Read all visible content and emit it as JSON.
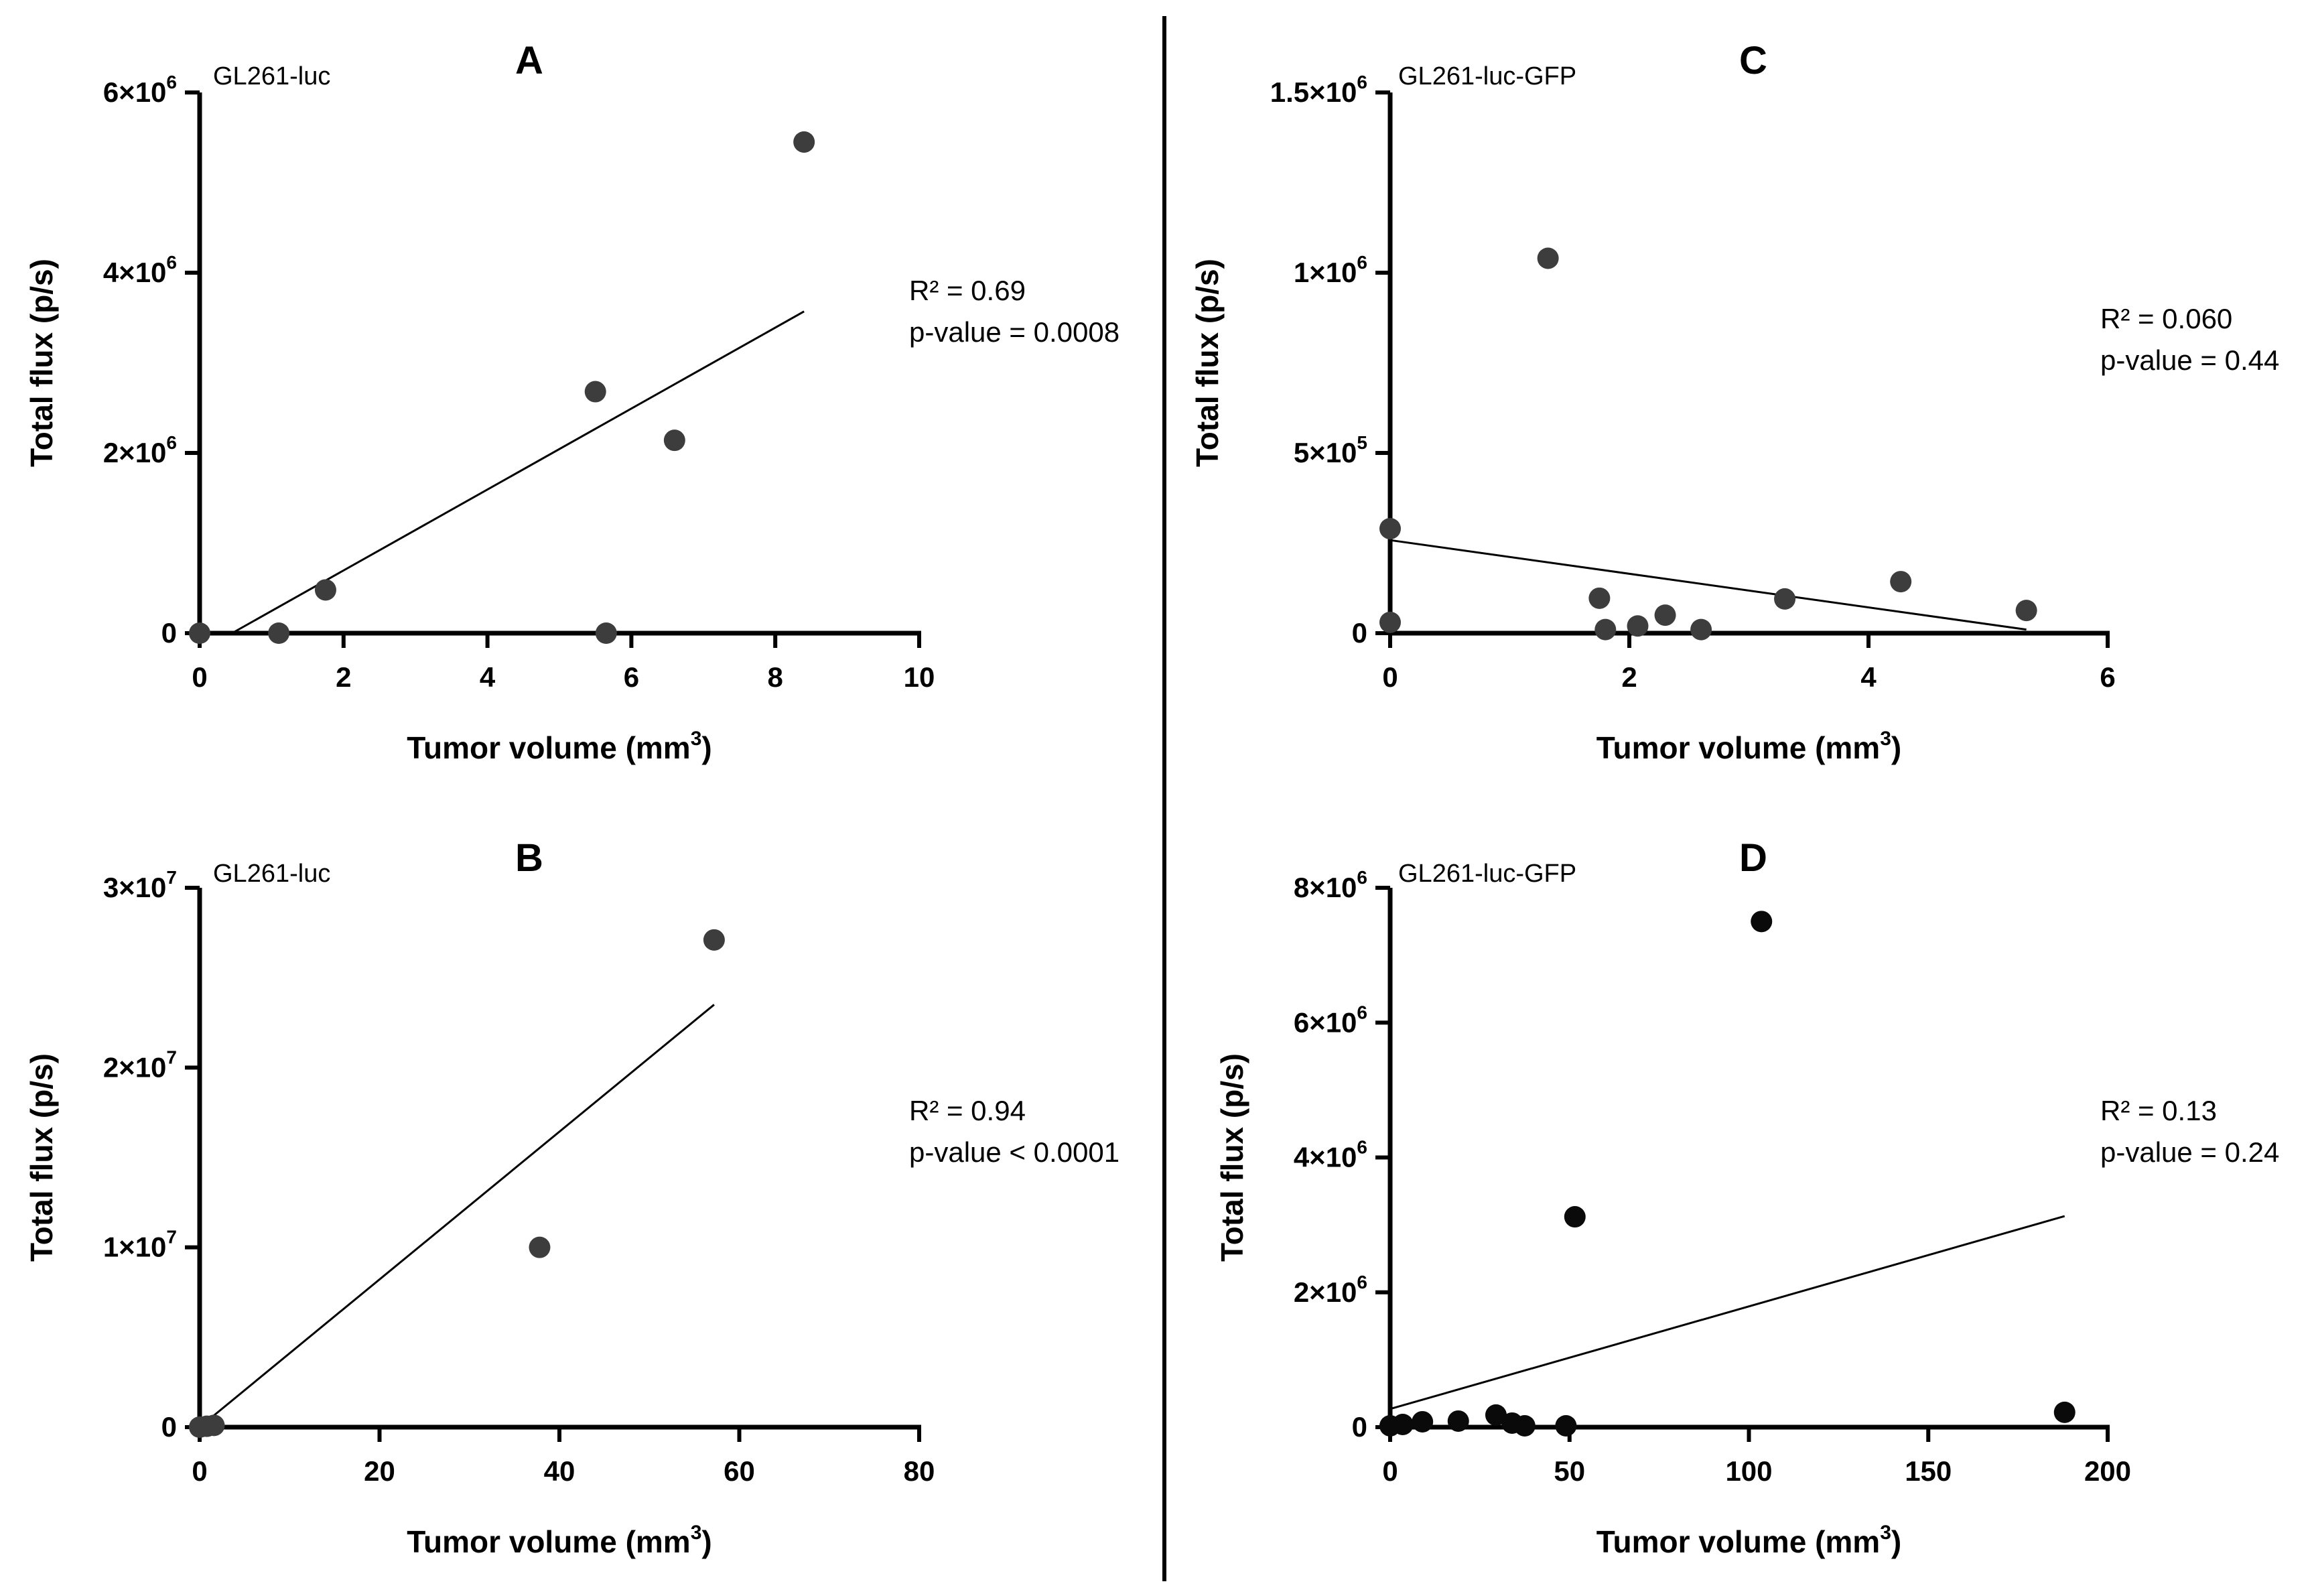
{
  "colors": {
    "marker": "#3d3d3d",
    "marker_dark": "#0a0a0a",
    "axis": "#000000",
    "line": "#000000"
  },
  "chart_data": [
    {
      "type": "scatter",
      "panel": "A",
      "cell_line": "GL261-luc",
      "xlabel": "Tumor volume (mm",
      "xlabel_sup": "3",
      "xlabel_end": ")",
      "ylabel": "Total flux (p/s)",
      "xlim": [
        0,
        10
      ],
      "ylim": [
        0,
        6000000
      ],
      "x_ticks": [
        0,
        2,
        4,
        6,
        8,
        10
      ],
      "x_tick_labels": [
        "0",
        "2",
        "4",
        "6",
        "8",
        "10"
      ],
      "y_ticks": [
        0,
        2000000,
        4000000,
        6000000
      ],
      "y_tick_labels": [
        {
          "base": "0",
          "exp": ""
        },
        {
          "base": "2×10",
          "exp": "6"
        },
        {
          "base": "4×10",
          "exp": "6"
        },
        {
          "base": "6×10",
          "exp": "6"
        }
      ],
      "points": [
        {
          "x": 0,
          "y": 0
        },
        {
          "x": 1.1,
          "y": 0
        },
        {
          "x": 1.75,
          "y": 480000
        },
        {
          "x": 5.5,
          "y": 2680000
        },
        {
          "x": 5.65,
          "y": 0
        },
        {
          "x": 6.6,
          "y": 2140000
        },
        {
          "x": 8.4,
          "y": 5450000
        }
      ],
      "fit": {
        "x1": 0.45,
        "y1": 0,
        "x2": 8.4,
        "y2": 3570000
      },
      "stats": [
        "R² = 0.69",
        "p-value = 0.0008"
      ],
      "dark_markers": false
    },
    {
      "type": "scatter",
      "panel": "B",
      "cell_line": "GL261-luc",
      "xlabel": "Tumor volume (mm",
      "xlabel_sup": "3",
      "xlabel_end": ")",
      "ylabel": "Total flux (p/s)",
      "xlim": [
        0,
        80
      ],
      "ylim": [
        0,
        30000000
      ],
      "x_ticks": [
        0,
        20,
        40,
        60,
        80
      ],
      "x_tick_labels": [
        "0",
        "20",
        "40",
        "60",
        "80"
      ],
      "y_ticks": [
        0,
        10000000,
        20000000,
        30000000
      ],
      "y_tick_labels": [
        {
          "base": "0",
          "exp": ""
        },
        {
          "base": "1×10",
          "exp": "7"
        },
        {
          "base": "2×10",
          "exp": "7"
        },
        {
          "base": "3×10",
          "exp": "7"
        }
      ],
      "points": [
        {
          "x": 0,
          "y": 0
        },
        {
          "x": 0.8,
          "y": 50000
        },
        {
          "x": 1.6,
          "y": 100000
        },
        {
          "x": 37.8,
          "y": 10000000
        },
        {
          "x": 57.2,
          "y": 27100000
        }
      ],
      "fit": {
        "x1": 0,
        "y1": 0,
        "x2": 57.2,
        "y2": 23500000
      },
      "stats": [
        "R² = 0.94",
        "p-value < 0.0001"
      ],
      "dark_markers": false
    },
    {
      "type": "scatter",
      "panel": "C",
      "cell_line": "GL261-luc-GFP",
      "xlabel": "Tumor volume (mm",
      "xlabel_sup": "3",
      "xlabel_end": ")",
      "ylabel": "Total flux (p/s)",
      "xlim": [
        0,
        6
      ],
      "ylim": [
        0,
        1500000
      ],
      "x_ticks": [
        0,
        2,
        4,
        6
      ],
      "x_tick_labels": [
        "0",
        "2",
        "4",
        "6"
      ],
      "y_ticks": [
        0,
        500000,
        1000000,
        1500000
      ],
      "y_tick_labels": [
        {
          "base": "0",
          "exp": ""
        },
        {
          "base": "5×10",
          "exp": "5"
        },
        {
          "base": "1×10",
          "exp": "6"
        },
        {
          "base": "1.5×10",
          "exp": "6"
        }
      ],
      "points": [
        {
          "x": 0,
          "y": 290000
        },
        {
          "x": 0,
          "y": 30000
        },
        {
          "x": 1.32,
          "y": 1040000
        },
        {
          "x": 1.75,
          "y": 97000
        },
        {
          "x": 1.8,
          "y": 10000
        },
        {
          "x": 2.07,
          "y": 20000
        },
        {
          "x": 2.3,
          "y": 50000
        },
        {
          "x": 2.6,
          "y": 10000
        },
        {
          "x": 3.3,
          "y": 95000
        },
        {
          "x": 4.27,
          "y": 143000
        },
        {
          "x": 5.32,
          "y": 63000
        }
      ],
      "fit": {
        "x1": 0,
        "y1": 258000,
        "x2": 5.32,
        "y2": 10000
      },
      "stats": [
        "R² = 0.060",
        "p-value = 0.44"
      ],
      "dark_markers": false
    },
    {
      "type": "scatter",
      "panel": "D",
      "cell_line": "GL261-luc-GFP",
      "xlabel": "Tumor volume (mm",
      "xlabel_sup": "3",
      "xlabel_end": ")",
      "ylabel": "Total flux (p/s)",
      "xlim": [
        0,
        200
      ],
      "ylim": [
        0,
        8000000
      ],
      "x_ticks": [
        0,
        50,
        100,
        150,
        200
      ],
      "x_tick_labels": [
        "0",
        "50",
        "100",
        "150",
        "200"
      ],
      "y_ticks": [
        0,
        2000000,
        4000000,
        6000000,
        8000000
      ],
      "y_tick_labels": [
        {
          "base": "0",
          "exp": ""
        },
        {
          "base": "2×10",
          "exp": "6"
        },
        {
          "base": "4×10",
          "exp": "6"
        },
        {
          "base": "6×10",
          "exp": "6"
        },
        {
          "base": "8×10",
          "exp": "6"
        }
      ],
      "points": [
        {
          "x": 0,
          "y": 20000
        },
        {
          "x": 3.5,
          "y": 40000
        },
        {
          "x": 9,
          "y": 80000
        },
        {
          "x": 19,
          "y": 90000
        },
        {
          "x": 29.5,
          "y": 180000
        },
        {
          "x": 34,
          "y": 60000
        },
        {
          "x": 37.5,
          "y": 20000
        },
        {
          "x": 49,
          "y": 20000
        },
        {
          "x": 51.5,
          "y": 3120000
        },
        {
          "x": 103.5,
          "y": 7500000
        },
        {
          "x": 188,
          "y": 220000
        }
      ],
      "fit": {
        "x1": 0,
        "y1": 270000,
        "x2": 188,
        "y2": 3130000
      },
      "stats": [
        "R² = 0.13",
        "p-value = 0.24"
      ],
      "dark_markers": true
    }
  ]
}
